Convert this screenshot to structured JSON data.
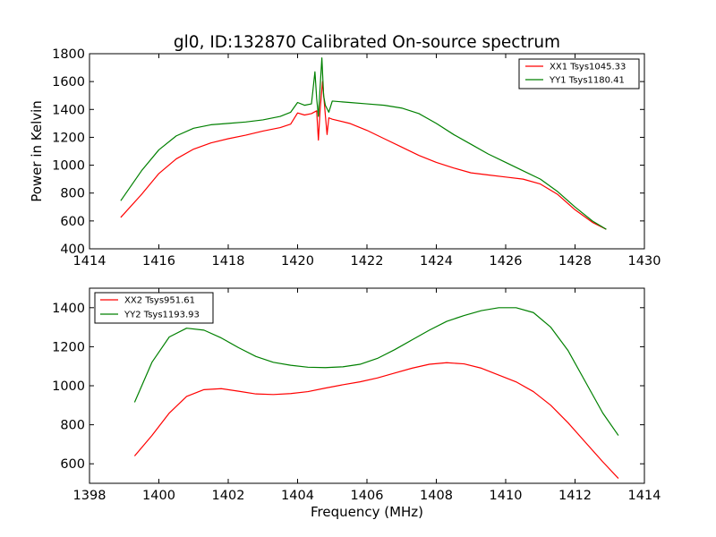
{
  "figure": {
    "title": "gl0, ID:132870 Calibrated On-source spectrum",
    "xlabel": "Frequency (MHz)"
  },
  "chart_data": [
    {
      "type": "line",
      "title": "gl0, ID:132870 Calibrated On-source spectrum",
      "xlabel": "",
      "ylabel": "Power in Kelvin",
      "xlim": [
        1414,
        1430
      ],
      "ylim": [
        400,
        1800
      ],
      "xticks": [
        1414,
        1416,
        1418,
        1420,
        1422,
        1424,
        1426,
        1428,
        1430
      ],
      "yticks": [
        400,
        600,
        800,
        1000,
        1200,
        1400,
        1600,
        1800
      ],
      "grid": false,
      "legend": "top-right",
      "series": [
        {
          "name": "XX1 Tsys1045.33",
          "color": "#ff0000",
          "x": [
            1414.9,
            1415.5,
            1416.0,
            1416.5,
            1417.0,
            1417.5,
            1418.0,
            1418.5,
            1419.0,
            1419.5,
            1419.8,
            1420.0,
            1420.2,
            1420.4,
            1420.55,
            1420.6,
            1420.65,
            1420.72,
            1420.8,
            1420.85,
            1420.9,
            1421.0,
            1421.5,
            1422.0,
            1422.5,
            1423.0,
            1423.5,
            1424.0,
            1424.5,
            1425.0,
            1425.5,
            1426.0,
            1426.5,
            1427.0,
            1427.5,
            1428.0,
            1428.5,
            1428.9
          ],
          "y": [
            625,
            790,
            940,
            1045,
            1115,
            1160,
            1190,
            1215,
            1245,
            1270,
            1295,
            1375,
            1360,
            1370,
            1390,
            1180,
            1400,
            1600,
            1360,
            1220,
            1340,
            1330,
            1300,
            1250,
            1190,
            1130,
            1070,
            1020,
            980,
            945,
            930,
            915,
            900,
            865,
            790,
            680,
            590,
            540
          ]
        },
        {
          "name": "YY1 Tsys1180.41",
          "color": "#008000",
          "x": [
            1414.9,
            1415.5,
            1416.0,
            1416.5,
            1417.0,
            1417.5,
            1418.0,
            1418.5,
            1419.0,
            1419.5,
            1419.8,
            1420.0,
            1420.2,
            1420.4,
            1420.5,
            1420.55,
            1420.6,
            1420.7,
            1420.75,
            1420.8,
            1420.9,
            1421.0,
            1421.5,
            1422.0,
            1422.5,
            1423.0,
            1423.5,
            1424.0,
            1424.5,
            1425.0,
            1425.5,
            1426.0,
            1426.5,
            1427.0,
            1427.5,
            1428.0,
            1428.5,
            1428.9
          ],
          "y": [
            745,
            960,
            1110,
            1210,
            1265,
            1290,
            1300,
            1310,
            1325,
            1350,
            1380,
            1450,
            1430,
            1440,
            1670,
            1480,
            1350,
            1770,
            1500,
            1430,
            1380,
            1460,
            1450,
            1440,
            1430,
            1410,
            1370,
            1300,
            1220,
            1150,
            1080,
            1020,
            960,
            900,
            810,
            700,
            600,
            540
          ]
        }
      ]
    },
    {
      "type": "line",
      "title": "",
      "xlabel": "Frequency (MHz)",
      "ylabel": "",
      "xlim": [
        1398,
        1414
      ],
      "ylim": [
        500,
        1500
      ],
      "xticks": [
        1398,
        1400,
        1402,
        1404,
        1406,
        1408,
        1410,
        1412,
        1414
      ],
      "yticks": [
        600,
        800,
        1000,
        1200,
        1400
      ],
      "grid": false,
      "legend": "top-left",
      "series": [
        {
          "name": "XX2 Tsys951.61",
          "color": "#ff0000",
          "x": [
            1399.3,
            1399.8,
            1400.3,
            1400.8,
            1401.3,
            1401.8,
            1402.3,
            1402.8,
            1403.3,
            1403.8,
            1404.3,
            1404.8,
            1405.3,
            1405.8,
            1406.3,
            1406.8,
            1407.3,
            1407.8,
            1408.3,
            1408.8,
            1409.3,
            1409.8,
            1410.3,
            1410.8,
            1411.3,
            1411.8,
            1412.3,
            1412.8,
            1413.25
          ],
          "y": [
            640,
            745,
            860,
            945,
            980,
            985,
            972,
            958,
            955,
            960,
            970,
            988,
            1005,
            1020,
            1040,
            1065,
            1090,
            1110,
            1118,
            1112,
            1090,
            1055,
            1020,
            970,
            900,
            810,
            710,
            610,
            525
          ]
        },
        {
          "name": "YY2 Tsys1193.93",
          "color": "#008000",
          "x": [
            1399.3,
            1399.8,
            1400.3,
            1400.8,
            1401.3,
            1401.8,
            1402.3,
            1402.8,
            1403.3,
            1403.8,
            1404.3,
            1404.8,
            1405.3,
            1405.8,
            1406.3,
            1406.8,
            1407.3,
            1407.8,
            1408.3,
            1408.8,
            1409.3,
            1409.8,
            1410.3,
            1410.8,
            1411.3,
            1411.8,
            1412.3,
            1412.8,
            1413.25
          ],
          "y": [
            915,
            1120,
            1250,
            1295,
            1285,
            1245,
            1195,
            1150,
            1120,
            1105,
            1095,
            1093,
            1097,
            1110,
            1140,
            1185,
            1235,
            1285,
            1330,
            1360,
            1385,
            1400,
            1400,
            1375,
            1300,
            1180,
            1020,
            860,
            745
          ]
        }
      ]
    }
  ]
}
